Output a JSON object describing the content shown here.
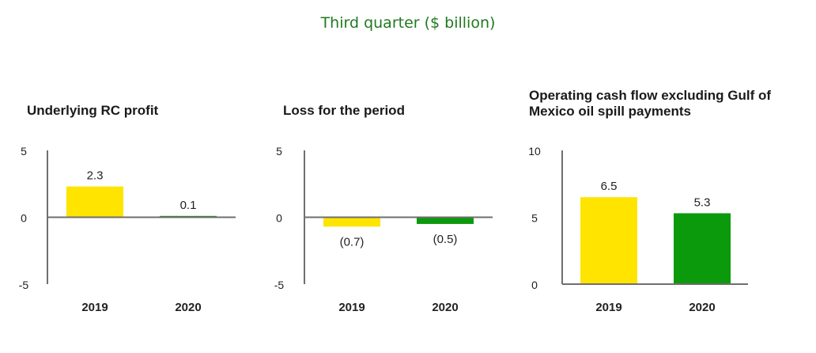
{
  "page_title": "Third quarter ($ billion)",
  "colors": {
    "title": "#1f7a1f",
    "series_2019": "#ffe400",
    "series_2020": "#0b9a0b",
    "axis": "#6f6f6f",
    "text": "#222222"
  },
  "chart_data": [
    {
      "type": "bar",
      "title": "Underlying RC profit",
      "categories": [
        "2019",
        "2020"
      ],
      "values": [
        2.3,
        0.1
      ],
      "value_labels": [
        "2.3",
        "0.1"
      ],
      "ylim": [
        -5,
        5
      ],
      "yticks": [
        "5",
        "0",
        "-5"
      ],
      "ytick_values": [
        5,
        0,
        -5
      ],
      "grid": false
    },
    {
      "type": "bar",
      "title": "Loss for the period",
      "categories": [
        "2019",
        "2020"
      ],
      "values": [
        -0.7,
        -0.5
      ],
      "value_labels": [
        "(0.7)",
        "(0.5)"
      ],
      "ylim": [
        -5,
        5
      ],
      "yticks": [
        "5",
        "0",
        "-5"
      ],
      "ytick_values": [
        5,
        0,
        -5
      ],
      "grid": false
    },
    {
      "type": "bar",
      "title_lines": [
        "Operating cash flow excluding Gulf of",
        "Mexico oil spill payments"
      ],
      "categories": [
        "2019",
        "2020"
      ],
      "values": [
        6.5,
        5.3
      ],
      "value_labels": [
        "6.5",
        "5.3"
      ],
      "ylim": [
        0,
        10
      ],
      "yticks": [
        "10",
        "5",
        "0"
      ],
      "ytick_values": [
        10,
        5,
        0
      ],
      "grid": false
    }
  ]
}
